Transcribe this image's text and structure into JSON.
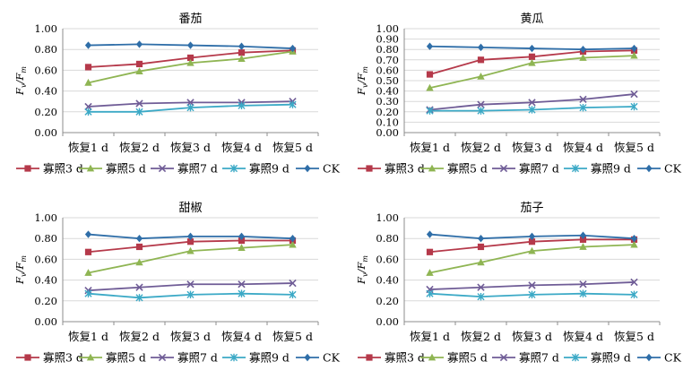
{
  "colors": {
    "寡照3d": "#b5394a",
    "寡照5d": "#8fb553",
    "寡照7d": "#6f5c96",
    "寡照9d": "#3ba9c6",
    "CK": "#2f6ea8",
    "grid": "#d9d9d9",
    "axis": "#8c8c8c"
  },
  "chart_data": [
    {
      "type": "line",
      "title": "番茄",
      "ylabel": "Fv/Fm",
      "ylabel_main": "F",
      "ylabel_sub1": "v",
      "ylabel_sep": "/F",
      "ylabel_sub2": "m",
      "ylim": [
        0,
        1
      ],
      "yticks": [
        "0.00",
        "0.20",
        "0.40",
        "0.60",
        "0.80",
        "1.00"
      ],
      "grid": true,
      "legend": "bottom",
      "categories": [
        "恢复1 d",
        "恢复2 d",
        "恢复3 d",
        "恢复4 d",
        "恢复5 d"
      ],
      "series": [
        {
          "name": "寡照3 d",
          "marker": "square",
          "values": [
            0.63,
            0.66,
            0.72,
            0.77,
            0.79
          ]
        },
        {
          "name": "寡照5 d",
          "marker": "triangle",
          "values": [
            0.48,
            0.59,
            0.67,
            0.71,
            0.78
          ]
        },
        {
          "name": "寡照7 d",
          "marker": "x",
          "values": [
            0.25,
            0.28,
            0.29,
            0.29,
            0.3
          ]
        },
        {
          "name": "寡照9 d",
          "marker": "star",
          "values": [
            0.2,
            0.2,
            0.24,
            0.26,
            0.27
          ]
        },
        {
          "name": "CK",
          "marker": "diamond",
          "values": [
            0.84,
            0.85,
            0.84,
            0.83,
            0.81
          ]
        }
      ]
    },
    {
      "type": "line",
      "title": "黄瓜",
      "ylabel": "Fv/Fm",
      "ylabel_main": "F",
      "ylabel_sub1": "v",
      "ylabel_sep": "/F",
      "ylabel_sub2": "m",
      "ylim": [
        0,
        1
      ],
      "yticks": [
        "0.00",
        "0.10",
        "0.20",
        "0.30",
        "0.40",
        "0.50",
        "0.60",
        "0.70",
        "0.80",
        "0.90",
        "1.00"
      ],
      "grid": true,
      "legend": "bottom",
      "categories": [
        "恢复1 d",
        "恢复2 d",
        "恢复3 d",
        "恢复4 d",
        "恢复5 d"
      ],
      "series": [
        {
          "name": "寡照3 d",
          "marker": "square",
          "values": [
            0.56,
            0.7,
            0.73,
            0.78,
            0.79
          ]
        },
        {
          "name": "寡照5 d",
          "marker": "triangle",
          "values": [
            0.43,
            0.54,
            0.67,
            0.72,
            0.74
          ]
        },
        {
          "name": "寡照7 d",
          "marker": "x",
          "values": [
            0.22,
            0.27,
            0.29,
            0.32,
            0.37
          ]
        },
        {
          "name": "寡照9 d",
          "marker": "star",
          "values": [
            0.21,
            0.21,
            0.22,
            0.24,
            0.25
          ]
        },
        {
          "name": "CK",
          "marker": "diamond",
          "values": [
            0.83,
            0.82,
            0.81,
            0.8,
            0.81
          ]
        }
      ]
    },
    {
      "type": "line",
      "title": "甜椒",
      "ylabel": "Fv/Fm",
      "ylabel_main": "F",
      "ylabel_sub1": "v",
      "ylabel_sep": "/F",
      "ylabel_sub2": "m",
      "ylim": [
        0,
        1
      ],
      "yticks": [
        "0.00",
        "0.20",
        "0.40",
        "0.60",
        "0.80",
        "1.00"
      ],
      "grid": true,
      "legend": "bottom",
      "categories": [
        "恢复1 d",
        "恢复2 d",
        "恢复3 d",
        "恢复4 d",
        "恢复5 d"
      ],
      "series": [
        {
          "name": "寡照3 d",
          "marker": "square",
          "values": [
            0.67,
            0.72,
            0.77,
            0.78,
            0.78
          ]
        },
        {
          "name": "寡照5 d",
          "marker": "triangle",
          "values": [
            0.47,
            0.57,
            0.68,
            0.71,
            0.74
          ]
        },
        {
          "name": "寡照7 d",
          "marker": "x",
          "values": [
            0.3,
            0.33,
            0.36,
            0.36,
            0.37
          ]
        },
        {
          "name": "寡照9 d",
          "marker": "star",
          "values": [
            0.27,
            0.23,
            0.26,
            0.27,
            0.26
          ]
        },
        {
          "name": "CK",
          "marker": "diamond",
          "values": [
            0.84,
            0.8,
            0.82,
            0.82,
            0.8
          ]
        }
      ]
    },
    {
      "type": "line",
      "title": "茄子",
      "ylabel": "Fv/Fm",
      "ylabel_main": "F",
      "ylabel_sub1": "v",
      "ylabel_sep": "/F",
      "ylabel_sub2": "m",
      "ylim": [
        0,
        1
      ],
      "yticks": [
        "0.00",
        "0.20",
        "0.40",
        "0.60",
        "0.80",
        "1.00"
      ],
      "grid": true,
      "legend": "bottom",
      "categories": [
        "恢复1 d",
        "恢复2 d",
        "恢复3 d",
        "恢复4 d",
        "恢复5 d"
      ],
      "series": [
        {
          "name": "寡照3 d",
          "marker": "square",
          "values": [
            0.67,
            0.72,
            0.77,
            0.79,
            0.79
          ]
        },
        {
          "name": "寡照5 d",
          "marker": "triangle",
          "values": [
            0.47,
            0.57,
            0.68,
            0.72,
            0.74
          ]
        },
        {
          "name": "寡照7 d",
          "marker": "x",
          "values": [
            0.31,
            0.33,
            0.35,
            0.36,
            0.38
          ]
        },
        {
          "name": "寡照9 d",
          "marker": "star",
          "values": [
            0.27,
            0.24,
            0.26,
            0.27,
            0.26
          ]
        },
        {
          "name": "CK",
          "marker": "diamond",
          "values": [
            0.84,
            0.8,
            0.82,
            0.83,
            0.8
          ]
        }
      ]
    }
  ]
}
